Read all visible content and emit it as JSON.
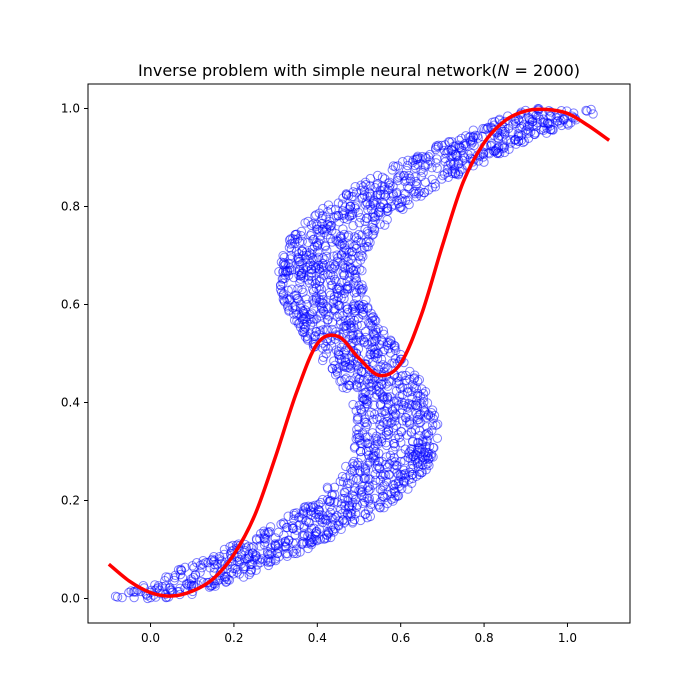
{
  "chart_data": {
    "type": "scatter",
    "title": "Inverse problem with simple neural network(N = 2000)",
    "title_parts": {
      "prefix": "Inverse problem with simple neural network(",
      "var": "N",
      "eq": " = 2000",
      "suffix": ")"
    },
    "xlabel": "",
    "ylabel": "",
    "xlim": [
      -0.15,
      1.15
    ],
    "ylim": [
      -0.05,
      1.05
    ],
    "x_ticks": [
      0.0,
      0.2,
      0.4,
      0.6,
      0.8,
      1.0
    ],
    "x_tick_labels": [
      "0.0",
      "0.2",
      "0.4",
      "0.6",
      "0.8",
      "1.0"
    ],
    "y_ticks": [
      0.0,
      0.2,
      0.4,
      0.6,
      0.8,
      1.0
    ],
    "y_tick_labels": [
      "0.0",
      "0.2",
      "0.4",
      "0.6",
      "0.8",
      "1.0"
    ],
    "grid": false,
    "colors": {
      "points": "#0000ff",
      "curve": "#ff0000"
    },
    "scatter": {
      "n": 2000,
      "marker": "open-circle",
      "alpha": 0.5,
      "description_of_shape": "y in [0,1], x = y + 0.3*sin(2*pi*y) + uniform noise in [-0.1, 0.1]",
      "y_range": [
        0.0,
        1.0
      ],
      "noise": 0.1,
      "amplitude": 0.3
    },
    "curve": {
      "name": "",
      "x": [
        -0.1,
        -0.05,
        0.0,
        0.05,
        0.1,
        0.15,
        0.2,
        0.25,
        0.3,
        0.35,
        0.4,
        0.45,
        0.5,
        0.55,
        0.6,
        0.65,
        0.7,
        0.75,
        0.8,
        0.85,
        0.9,
        0.95,
        1.0,
        1.05,
        1.1
      ],
      "y": [
        0.07,
        0.035,
        0.012,
        0.005,
        0.015,
        0.04,
        0.09,
        0.17,
        0.29,
        0.42,
        0.52,
        0.535,
        0.49,
        0.455,
        0.48,
        0.58,
        0.72,
        0.85,
        0.93,
        0.975,
        0.995,
        0.998,
        0.99,
        0.965,
        0.935
      ]
    }
  }
}
